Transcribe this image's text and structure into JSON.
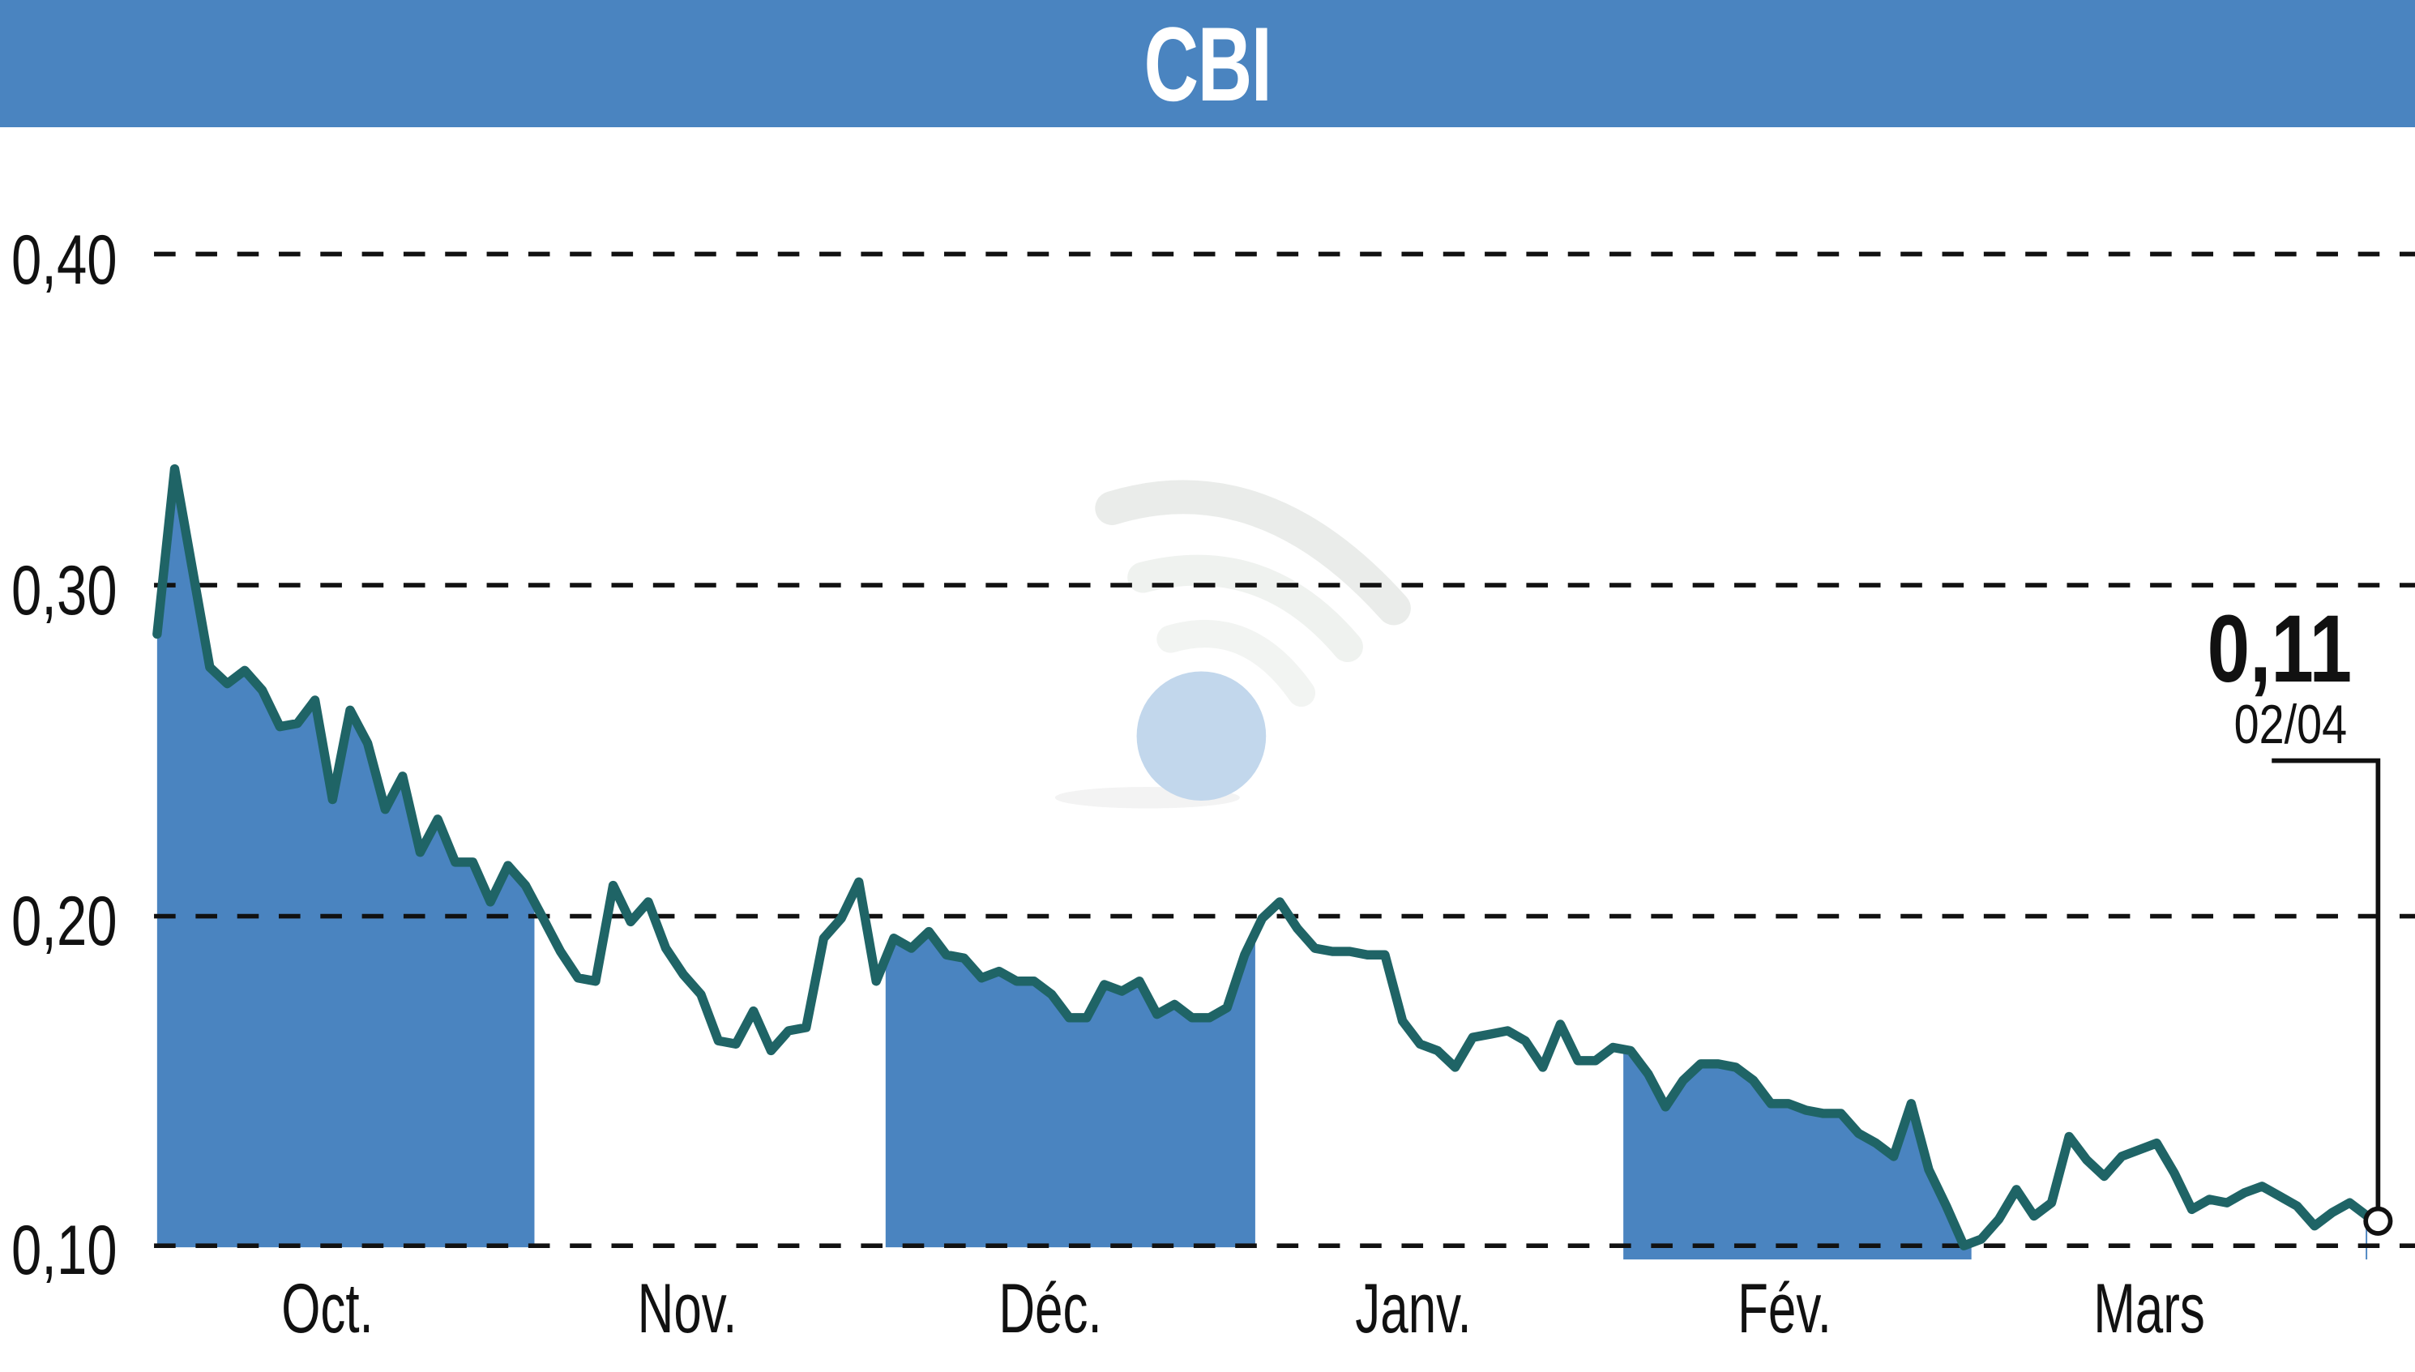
{
  "header": {
    "title": "CBI",
    "background": "#4a84c0"
  },
  "colors": {
    "fill": "#4a84c0",
    "line": "#1f6466",
    "grid": "#111111",
    "watermark_circle": "#bcd3ea",
    "watermark_arcs": "#e8ebe8"
  },
  "axis": {
    "y_ticks": [
      "0,40",
      "0,30",
      "0,20",
      "0,10"
    ],
    "x_ticks": [
      "Oct.",
      "Nov.",
      "Déc.",
      "Janv.",
      "Fév.",
      "Mars"
    ]
  },
  "annotation": {
    "last_value": "0,11",
    "last_date": "02/04"
  },
  "watermark": {
    "icon": "wifi-signal-logo-icon"
  },
  "chart_data": {
    "type": "area",
    "title": "CBI",
    "xlabel": "",
    "ylabel": "",
    "ylim": [
      0.1,
      0.4
    ],
    "y_ticks": [
      0.1,
      0.2,
      0.3,
      0.4
    ],
    "grid": "horizontal dashed",
    "legend": "none",
    "x_categories": [
      "Oct.",
      "Nov.",
      "Déc.",
      "Janv.",
      "Fév.",
      "Mars"
    ],
    "shaded_months": [
      "Oct.",
      "Déc.",
      "Fév."
    ],
    "series": [
      {
        "name": "CBI",
        "values": [
          0.285,
          0.335,
          0.305,
          0.275,
          0.27,
          0.274,
          0.268,
          0.257,
          0.258,
          0.265,
          0.235,
          0.262,
          0.252,
          0.232,
          0.242,
          0.219,
          0.229,
          0.216,
          0.216,
          0.204,
          0.215,
          0.209,
          0.199,
          0.189,
          0.181,
          0.18,
          0.209,
          0.198,
          0.204,
          0.19,
          0.182,
          0.176,
          0.162,
          0.161,
          0.171,
          0.159,
          0.165,
          0.166,
          0.193,
          0.199,
          0.21,
          0.18,
          0.193,
          0.19,
          0.195,
          0.188,
          0.187,
          0.181,
          0.183,
          0.18,
          0.18,
          0.176,
          0.169,
          0.169,
          0.179,
          0.177,
          0.18,
          0.17,
          0.173,
          0.169,
          0.169,
          0.172,
          0.188,
          0.199,
          0.204,
          0.196,
          0.19,
          0.189,
          0.189,
          0.188,
          0.188,
          0.168,
          0.161,
          0.159,
          0.154,
          0.163,
          0.164,
          0.165,
          0.162,
          0.154,
          0.167,
          0.156,
          0.156,
          0.16,
          0.159,
          0.152,
          0.142,
          0.15,
          0.155,
          0.155,
          0.154,
          0.15,
          0.143,
          0.143,
          0.141,
          0.14,
          0.14,
          0.134,
          0.131,
          0.127,
          0.143,
          0.123,
          0.112,
          0.1,
          0.102,
          0.108,
          0.117,
          0.109,
          0.113,
          0.133,
          0.126,
          0.121,
          0.127,
          0.129,
          0.131,
          0.122,
          0.111,
          0.114,
          0.113,
          0.116,
          0.118,
          0.115,
          0.112,
          0.106,
          0.11,
          0.113,
          0.109
        ]
      }
    ],
    "last": {
      "value": 0.11,
      "label": "0,11",
      "date": "02/04"
    }
  }
}
